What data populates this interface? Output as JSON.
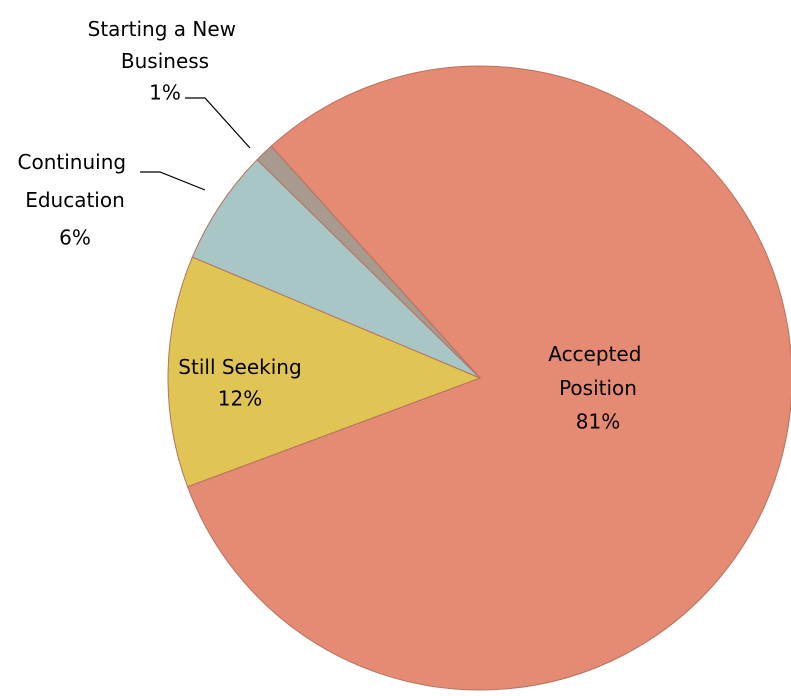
{
  "chart_data": {
    "type": "pie",
    "categories": [
      "Accepted Position",
      "Still Seeking",
      "Continuing Education",
      "Starting a New Business"
    ],
    "values": [
      81,
      12,
      6,
      1
    ],
    "value_labels": [
      "81%",
      "12%",
      "6%",
      "1%"
    ],
    "colors": [
      "#e58a73",
      "#e0c555",
      "#a8c6c6",
      "#a89a8f"
    ]
  }
}
